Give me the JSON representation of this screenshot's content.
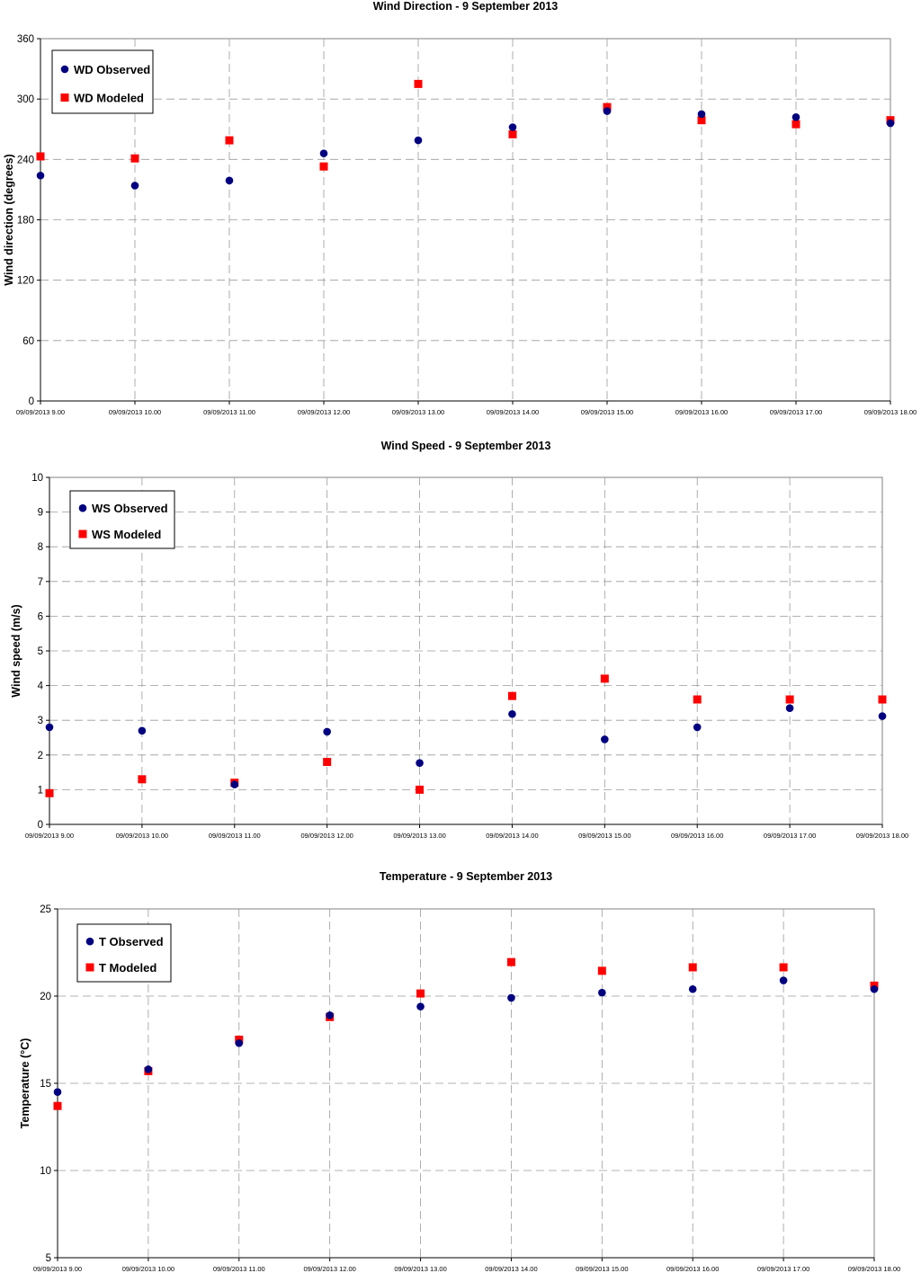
{
  "chart_data": [
    {
      "type": "scatter",
      "title": "Wind Direction - 9 September 2013",
      "ylabel": "Wind direction (degrees)",
      "xlabel": "",
      "ylim": [
        0,
        360
      ],
      "yticks": [
        0,
        60,
        120,
        180,
        240,
        300,
        360
      ],
      "x": [
        "09/09/2013 9.00",
        "09/09/2013 10.00",
        "09/09/2013 11.00",
        "09/09/2013 12.00",
        "09/09/2013 13.00",
        "09/09/2013 14.00",
        "09/09/2013 15.00",
        "09/09/2013 16.00",
        "09/09/2013 17.00",
        "09/09/2013 18.00"
      ],
      "grid": "dashed",
      "legend": "top-left",
      "series": [
        {
          "name": "WD Observed",
          "marker": "circle",
          "color": "#000080",
          "values": [
            224,
            214,
            219,
            246,
            259,
            272,
            288,
            285,
            282,
            276
          ]
        },
        {
          "name": "WD Modeled",
          "marker": "square",
          "color": "#ff0000",
          "values": [
            243,
            241,
            259,
            233,
            315,
            265,
            292,
            279,
            275,
            279
          ]
        }
      ]
    },
    {
      "type": "scatter",
      "title": "Wind Speed - 9 September 2013",
      "ylabel": "Wind speed (m/s)",
      "xlabel": "",
      "ylim": [
        0,
        10
      ],
      "yticks": [
        0,
        1,
        2,
        3,
        4,
        5,
        6,
        7,
        8,
        9,
        10
      ],
      "x": [
        "09/09/2013 9.00",
        "09/09/2013 10.00",
        "09/09/2013 11.00",
        "09/09/2013 12.00",
        "09/09/2013 13.00",
        "09/09/2013 14.00",
        "09/09/2013 15.00",
        "09/09/2013 16.00",
        "09/09/2013 17.00",
        "09/09/2013 18.00"
      ],
      "grid": "dashed",
      "legend": "top-left",
      "series": [
        {
          "name": "WS Observed",
          "marker": "circle",
          "color": "#000080",
          "values": [
            2.8,
            2.7,
            1.15,
            2.67,
            1.77,
            3.18,
            2.45,
            2.8,
            3.35,
            3.12
          ]
        },
        {
          "name": "WS Modeled",
          "marker": "square",
          "color": "#ff0000",
          "values": [
            0.9,
            1.3,
            1.2,
            1.8,
            1.0,
            3.7,
            4.2,
            3.6,
            3.6,
            3.6
          ]
        }
      ]
    },
    {
      "type": "scatter",
      "title": "Temperature - 9 September 2013",
      "ylabel": "Temperature (°C)",
      "xlabel": "",
      "ylim": [
        5,
        25
      ],
      "yticks": [
        5,
        10,
        15,
        20,
        25
      ],
      "x": [
        "09/09/2013 9.00",
        "09/09/2013 10.00",
        "09/09/2013 11.00",
        "09/09/2013 12.00",
        "09/09/2013 13.00",
        "09/09/2013 14.00",
        "09/09/2013 15.00",
        "09/09/2013 16.00",
        "09/09/2013 17.00",
        "09/09/2013 18.00"
      ],
      "grid": "dashed",
      "legend": "top-left",
      "series": [
        {
          "name": "T Observed",
          "marker": "circle",
          "color": "#000080",
          "values": [
            14.5,
            15.8,
            17.3,
            18.9,
            19.4,
            19.9,
            20.2,
            20.4,
            20.9,
            20.4
          ]
        },
        {
          "name": "T Modeled",
          "marker": "square",
          "color": "#ff0000",
          "values": [
            13.7,
            15.7,
            17.5,
            18.8,
            20.15,
            21.95,
            21.45,
            21.65,
            21.65,
            20.6
          ]
        }
      ]
    }
  ]
}
